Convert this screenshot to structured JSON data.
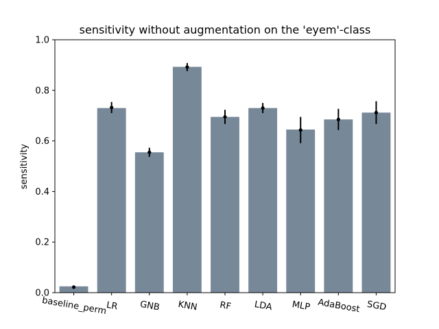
{
  "chart_data": {
    "type": "bar",
    "title": "sensitivity without augmentation on the 'eyem'-class",
    "xlabel": "",
    "ylabel": "sensitivity",
    "ylim": [
      0,
      1.0
    ],
    "yticks": [
      "0.0",
      "0.2",
      "0.4",
      "0.6",
      "0.8",
      "1.0"
    ],
    "categories": [
      "baseline_perm",
      "LR",
      "GNB",
      "KNN",
      "RF",
      "LDA",
      "MLP",
      "AdaBoost",
      "SGD"
    ],
    "values": [
      0.025,
      0.73,
      0.555,
      0.893,
      0.695,
      0.73,
      0.645,
      0.685,
      0.712
    ],
    "points": [
      0.022,
      0.732,
      0.555,
      0.892,
      0.695,
      0.73,
      0.643,
      0.685,
      0.712
    ],
    "errors": [
      0.0,
      0.022,
      0.018,
      0.016,
      0.028,
      0.02,
      0.052,
      0.042,
      0.045
    ],
    "bar_color": "#778899",
    "point_color": "#000000",
    "grid": false,
    "legend": "none"
  }
}
